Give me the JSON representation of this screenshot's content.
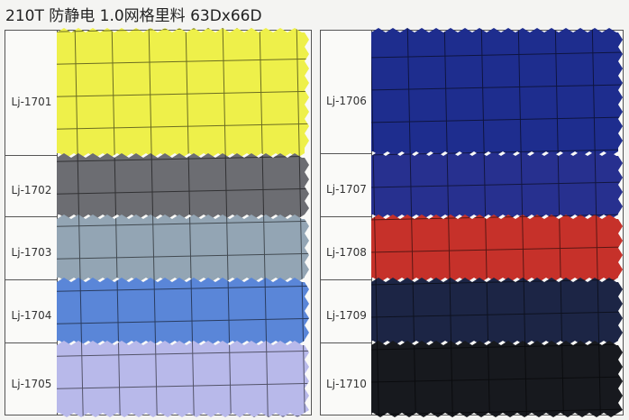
{
  "title": "210T 防静电 1.0网格里料 63Dx66D",
  "left": [
    "Lj-1701",
    "Lj-1702",
    "Lj-1703",
    "Lj-1704",
    "Lj-1705"
  ],
  "right": [
    "Lj-1706",
    "Lj-1707",
    "Lj-1708",
    "Lj-1709",
    "Lj-1710"
  ]
}
